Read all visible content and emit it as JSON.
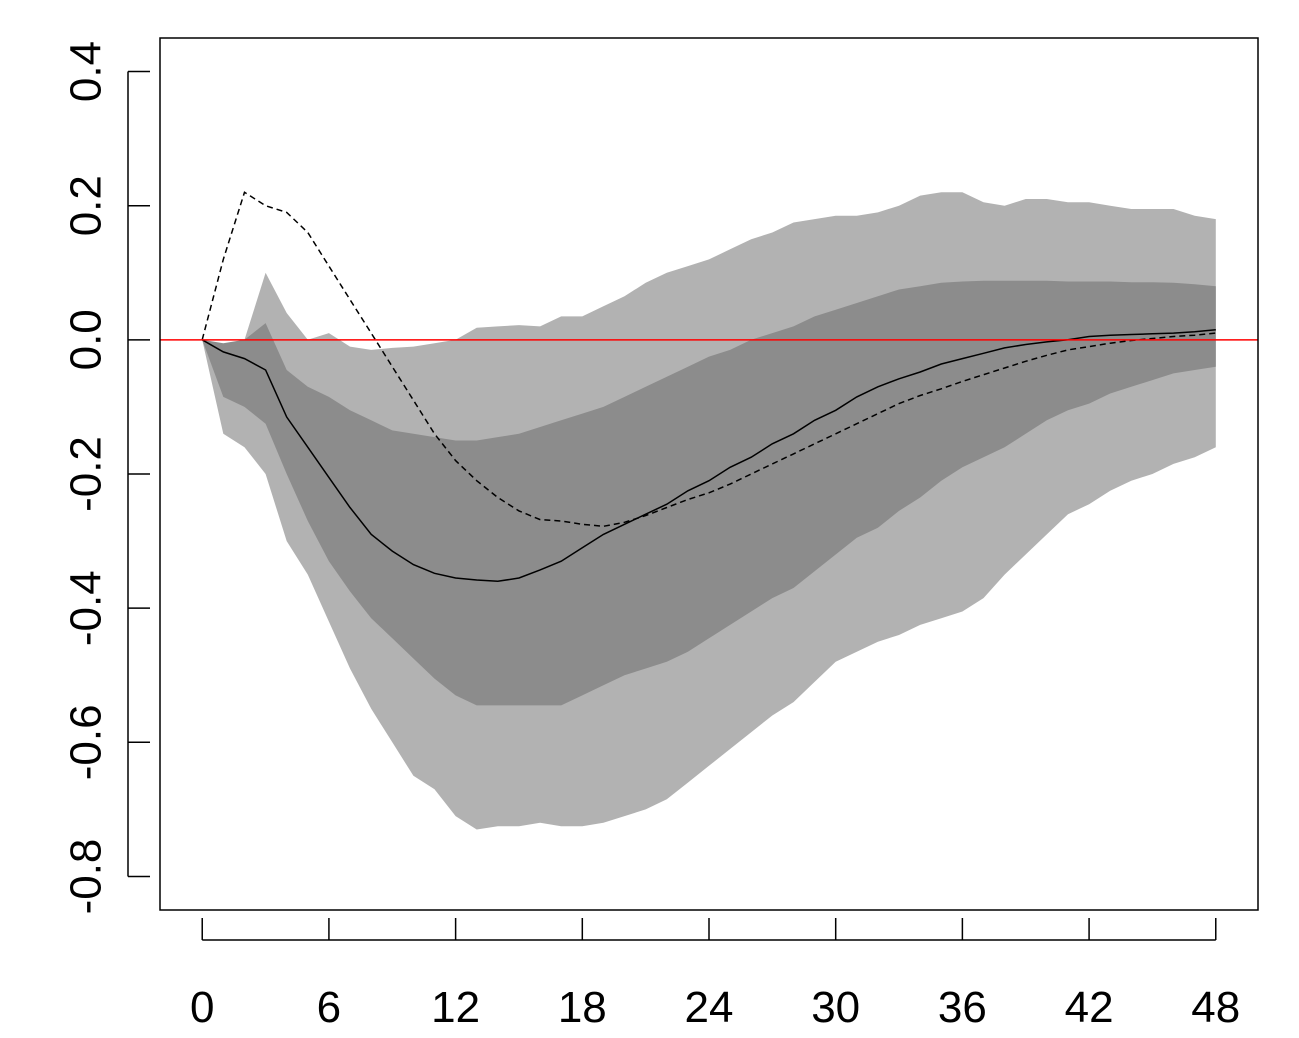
{
  "chart_data": {
    "type": "area",
    "title": "",
    "xlabel": "",
    "ylabel": "",
    "xlim": [
      -2,
      50
    ],
    "ylim": [
      -0.85,
      0.45
    ],
    "x_ticks": [
      0,
      6,
      12,
      18,
      24,
      30,
      36,
      42,
      48
    ],
    "x_tick_labels": [
      "0",
      "6",
      "12",
      "18",
      "24",
      "30",
      "36",
      "42",
      "48"
    ],
    "y_ticks": [
      -0.8,
      -0.6,
      -0.4,
      -0.2,
      0.0,
      0.2,
      0.4
    ],
    "y_tick_labels": [
      "-0.8",
      "-0.6",
      "-0.4",
      "-0.2",
      "0.0",
      "0.2",
      "0.4"
    ],
    "grid": false,
    "legend": "none",
    "x": [
      0,
      1,
      2,
      3,
      4,
      5,
      6,
      7,
      8,
      9,
      10,
      11,
      12,
      13,
      14,
      15,
      16,
      17,
      18,
      19,
      20,
      21,
      22,
      23,
      24,
      25,
      26,
      27,
      28,
      29,
      30,
      31,
      32,
      33,
      34,
      35,
      36,
      37,
      38,
      39,
      40,
      41,
      42,
      43,
      44,
      45,
      46,
      47,
      48
    ],
    "bands": [
      {
        "level": "outer",
        "color": "#b2b2b2",
        "upper": [
          0.0,
          -0.02,
          0.0,
          0.1,
          0.04,
          0.0,
          0.01,
          -0.01,
          -0.015,
          -0.012,
          -0.01,
          -0.005,
          0.0,
          0.018,
          0.02,
          0.022,
          0.02,
          0.035,
          0.035,
          0.05,
          0.065,
          0.085,
          0.1,
          0.11,
          0.12,
          0.135,
          0.15,
          0.16,
          0.175,
          0.18,
          0.185,
          0.185,
          0.19,
          0.2,
          0.215,
          0.22,
          0.22,
          0.205,
          0.2,
          0.21,
          0.21,
          0.205,
          0.205,
          0.2,
          0.195,
          0.195,
          0.195,
          0.185,
          0.18
        ],
        "lower": [
          0.0,
          -0.14,
          -0.16,
          -0.2,
          -0.3,
          -0.35,
          -0.42,
          -0.49,
          -0.55,
          -0.6,
          -0.65,
          -0.67,
          -0.71,
          -0.73,
          -0.725,
          -0.725,
          -0.72,
          -0.725,
          -0.725,
          -0.72,
          -0.71,
          -0.7,
          -0.685,
          -0.66,
          -0.635,
          -0.61,
          -0.585,
          -0.56,
          -0.54,
          -0.51,
          -0.48,
          -0.465,
          -0.45,
          -0.44,
          -0.425,
          -0.415,
          -0.405,
          -0.385,
          -0.35,
          -0.32,
          -0.29,
          -0.26,
          -0.245,
          -0.225,
          -0.21,
          -0.2,
          -0.185,
          -0.175,
          -0.16
        ]
      },
      {
        "level": "inner",
        "color": "#8c8c8c",
        "upper": [
          0.0,
          -0.005,
          0.0,
          0.025,
          -0.045,
          -0.07,
          -0.085,
          -0.105,
          -0.12,
          -0.135,
          -0.14,
          -0.145,
          -0.15,
          -0.15,
          -0.145,
          -0.14,
          -0.13,
          -0.12,
          -0.11,
          -0.1,
          -0.085,
          -0.07,
          -0.055,
          -0.04,
          -0.025,
          -0.015,
          0.0,
          0.01,
          0.02,
          0.035,
          0.045,
          0.055,
          0.065,
          0.075,
          0.08,
          0.085,
          0.087,
          0.088,
          0.088,
          0.088,
          0.088,
          0.087,
          0.087,
          0.087,
          0.086,
          0.086,
          0.085,
          0.083,
          0.08
        ],
        "lower": [
          0.0,
          -0.085,
          -0.1,
          -0.125,
          -0.2,
          -0.27,
          -0.33,
          -0.375,
          -0.415,
          -0.445,
          -0.475,
          -0.505,
          -0.53,
          -0.545,
          -0.545,
          -0.545,
          -0.545,
          -0.545,
          -0.53,
          -0.515,
          -0.5,
          -0.49,
          -0.48,
          -0.465,
          -0.445,
          -0.425,
          -0.405,
          -0.385,
          -0.37,
          -0.345,
          -0.32,
          -0.295,
          -0.28,
          -0.255,
          -0.235,
          -0.21,
          -0.19,
          -0.175,
          -0.16,
          -0.14,
          -0.12,
          -0.105,
          -0.095,
          -0.08,
          -0.07,
          -0.06,
          -0.05,
          -0.045,
          -0.04
        ]
      }
    ],
    "series": [
      {
        "style": "solid",
        "color": "#000000",
        "values": [
          0.0,
          -0.018,
          -0.028,
          -0.045,
          -0.115,
          -0.16,
          -0.205,
          -0.25,
          -0.29,
          -0.315,
          -0.335,
          -0.348,
          -0.355,
          -0.358,
          -0.36,
          -0.355,
          -0.343,
          -0.33,
          -0.31,
          -0.29,
          -0.275,
          -0.26,
          -0.245,
          -0.225,
          -0.21,
          -0.19,
          -0.175,
          -0.155,
          -0.14,
          -0.12,
          -0.105,
          -0.085,
          -0.07,
          -0.058,
          -0.048,
          -0.036,
          -0.028,
          -0.02,
          -0.012,
          -0.007,
          -0.003,
          0.0,
          0.005,
          0.007,
          0.008,
          0.009,
          0.01,
          0.012,
          0.015
        ]
      },
      {
        "style": "dashed",
        "color": "#000000",
        "values": [
          0.0,
          0.12,
          0.22,
          0.2,
          0.19,
          0.16,
          0.11,
          0.06,
          0.01,
          -0.04,
          -0.09,
          -0.14,
          -0.18,
          -0.21,
          -0.235,
          -0.255,
          -0.268,
          -0.27,
          -0.275,
          -0.278,
          -0.272,
          -0.262,
          -0.25,
          -0.238,
          -0.228,
          -0.215,
          -0.2,
          -0.185,
          -0.17,
          -0.155,
          -0.14,
          -0.125,
          -0.11,
          -0.095,
          -0.083,
          -0.073,
          -0.062,
          -0.052,
          -0.042,
          -0.032,
          -0.023,
          -0.015,
          -0.01,
          -0.005,
          -0.001,
          0.002,
          0.005,
          0.007,
          0.01
        ]
      }
    ],
    "reference_line": {
      "y": 0.0,
      "color": "#ff0000"
    }
  }
}
